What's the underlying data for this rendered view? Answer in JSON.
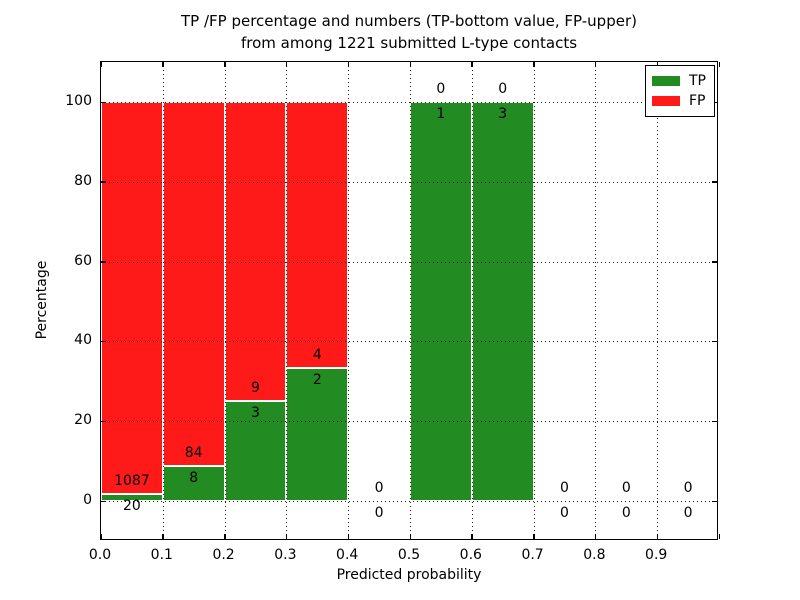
{
  "title": {
    "line1": "TP /FP percentage and numbers (TP-bottom value, FP-upper)",
    "line2": "from among 1221 submitted L-type contacts"
  },
  "axes": {
    "xlabel": "Predicted probability",
    "ylabel": "Percentage",
    "xtick_labels": [
      "0.0",
      "0.1",
      "0.2",
      "0.3",
      "0.4",
      "0.5",
      "0.6",
      "0.7",
      "0.8",
      "0.9"
    ],
    "ytick_labels": [
      "0",
      "20",
      "40",
      "60",
      "80",
      "100"
    ]
  },
  "legend": {
    "position": "upper right",
    "entries": [
      {
        "label": "TP",
        "color": "#228b22"
      },
      {
        "label": "FP",
        "color": "#ff1a1a"
      }
    ]
  },
  "chart_data": {
    "type": "bar",
    "stacked": true,
    "title": "TP /FP percentage and numbers (TP-bottom value, FP-upper) from among 1221 submitted L-type contacts",
    "xlabel": "Predicted probability",
    "ylabel": "Percentage",
    "xlim": [
      0.0,
      1.0
    ],
    "ylim": [
      -10,
      110
    ],
    "xticks": [
      0.0,
      0.1,
      0.2,
      0.3,
      0.4,
      0.5,
      0.6,
      0.7,
      0.8,
      0.9
    ],
    "yticks": [
      0,
      20,
      40,
      60,
      80,
      100
    ],
    "grid": "dotted, both axes",
    "legend_position": "upper right",
    "bar_width": 0.1,
    "bin_starts": [
      0.0,
      0.1,
      0.2,
      0.3,
      0.4,
      0.5,
      0.6,
      0.7,
      0.8,
      0.9
    ],
    "series": [
      {
        "name": "TP",
        "color": "#228b22",
        "counts": [
          20,
          8,
          3,
          2,
          0,
          1,
          3,
          0,
          0,
          0
        ]
      },
      {
        "name": "FP",
        "color": "#ff1a1a",
        "counts": [
          1087,
          84,
          9,
          4,
          0,
          0,
          0,
          0,
          0,
          0
        ]
      }
    ],
    "tp_percent": [
      1.81,
      8.7,
      25.0,
      33.33,
      0,
      100.0,
      100.0,
      0,
      0,
      0
    ],
    "fp_percent": [
      98.19,
      91.3,
      75.0,
      66.67,
      0,
      0,
      0,
      0,
      0,
      0
    ],
    "total_submitted": 1221
  }
}
